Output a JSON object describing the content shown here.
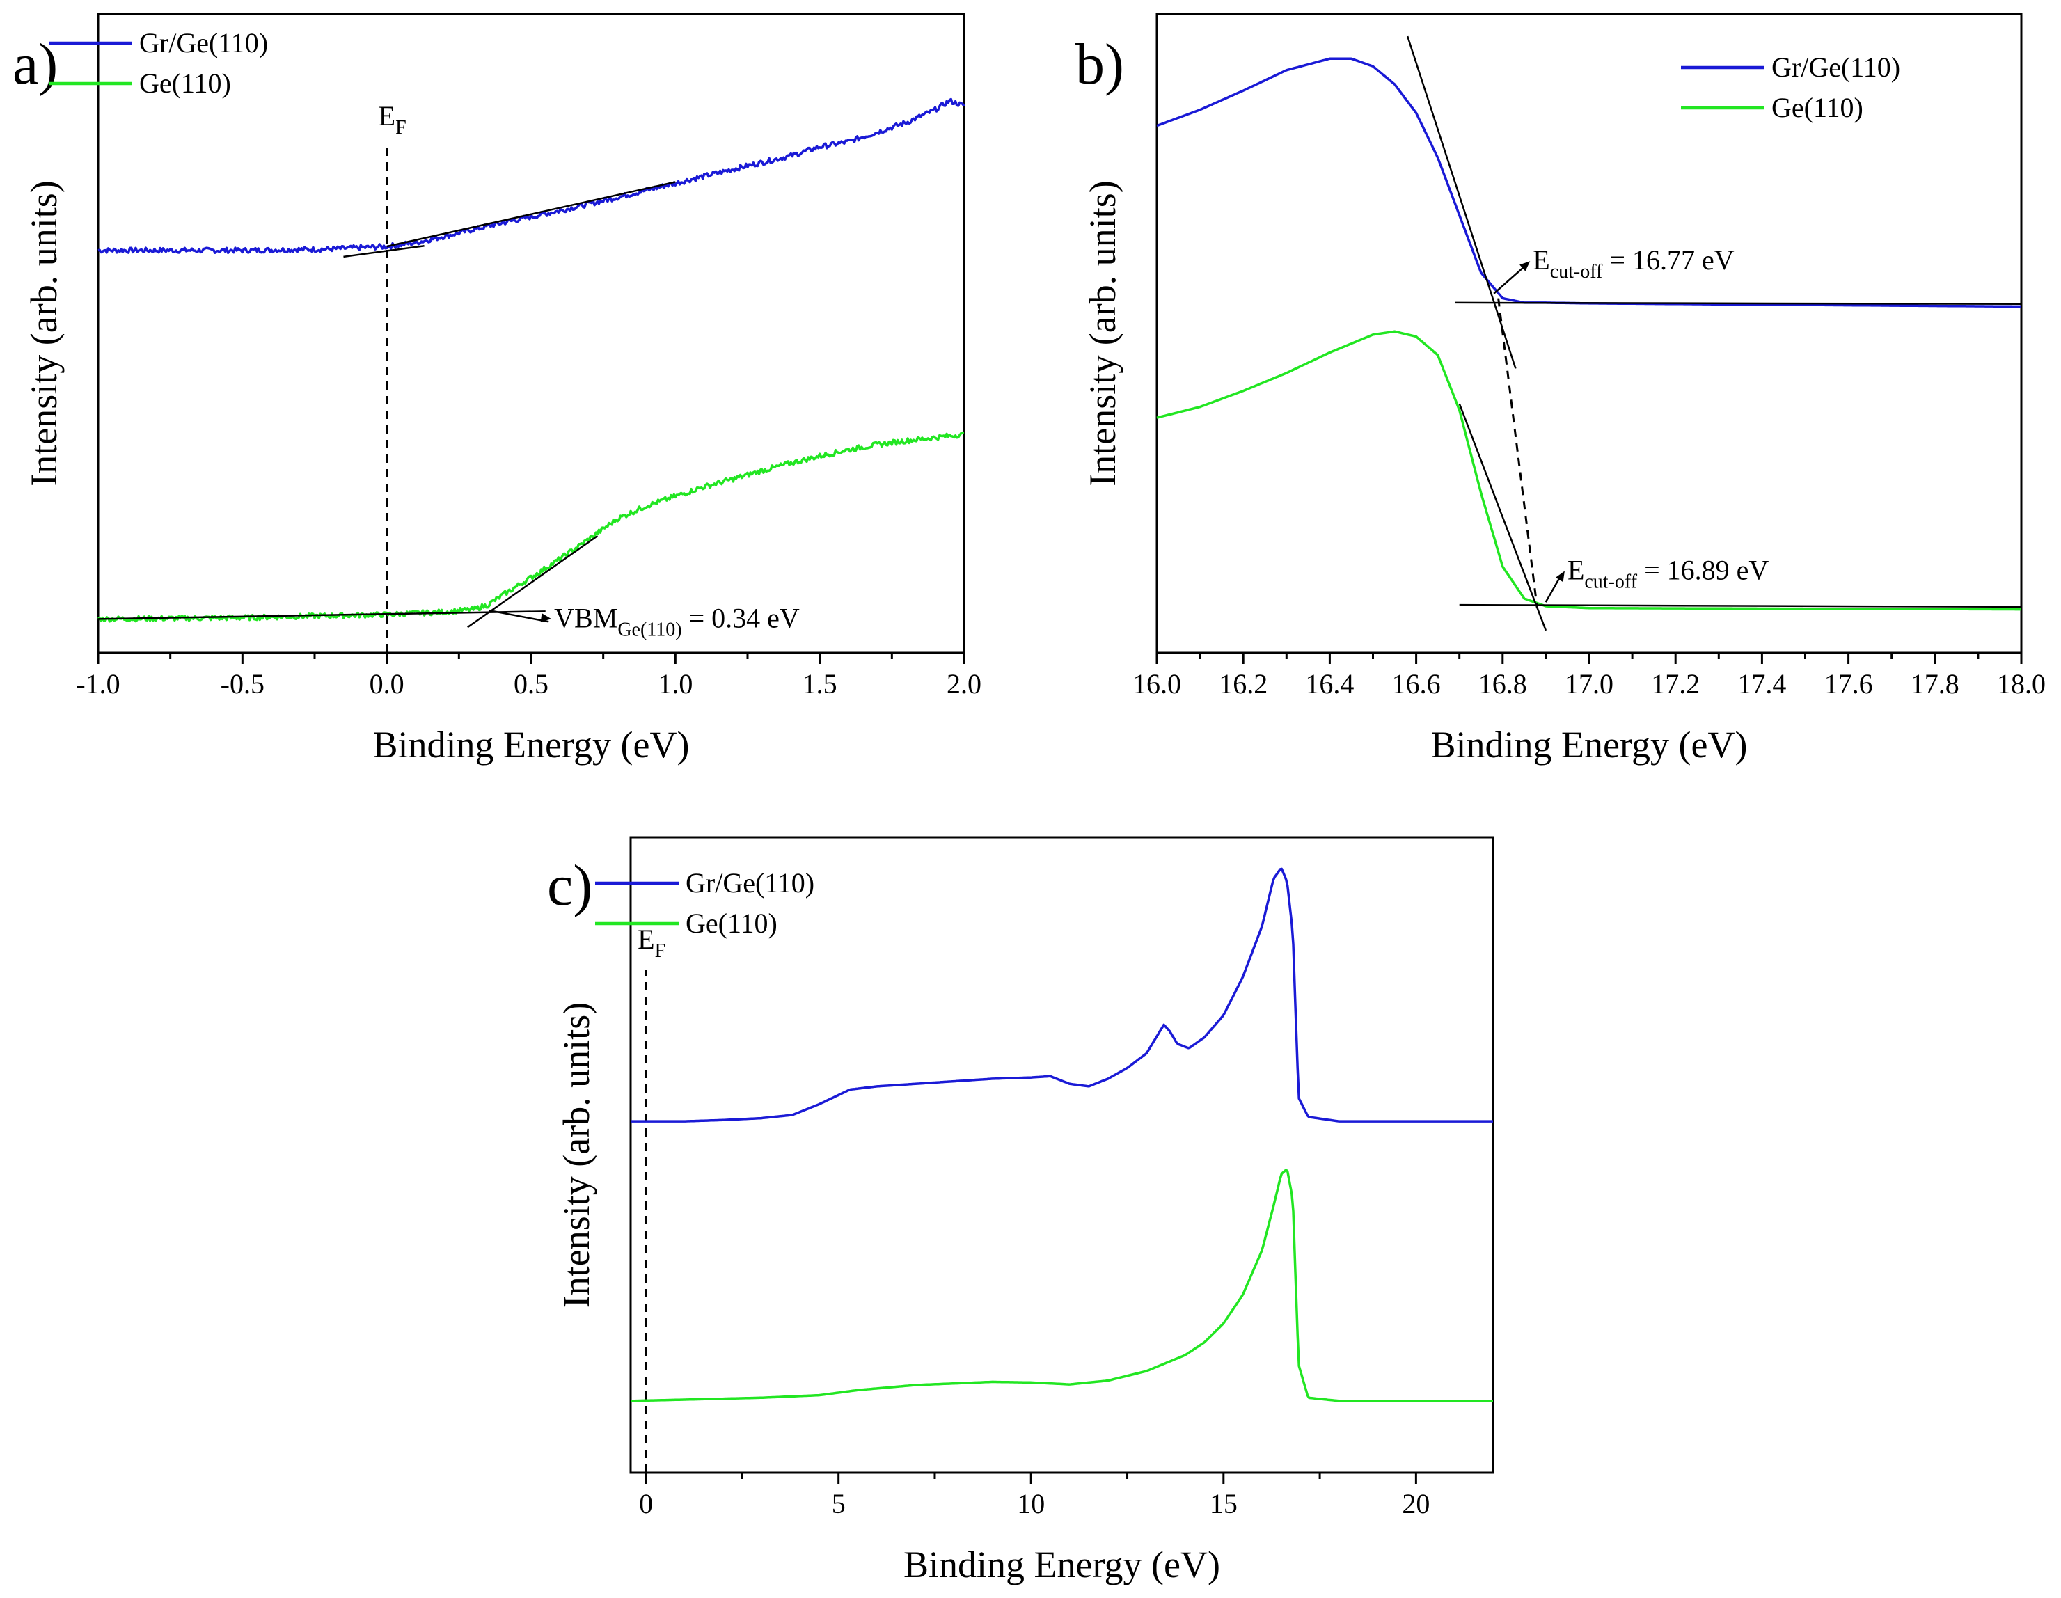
{
  "colors": {
    "blue": "#1a1ad6",
    "green": "#22e622"
  },
  "chart_data": [
    {
      "id": "a",
      "type": "line",
      "panel_label": "a)",
      "xlabel": "Binding Energy (eV)",
      "ylabel": "Intensity (arb. units)",
      "xlim": [
        -1.0,
        2.0
      ],
      "ylim": [
        0,
        1
      ],
      "xticks": [
        -1.0,
        -0.5,
        0.0,
        0.5,
        1.0,
        1.5,
        2.0
      ],
      "xtick_labels": [
        "-1.0",
        "-0.5",
        "0.0",
        "0.5",
        "1.0",
        "1.5",
        "2.0"
      ],
      "legend": [
        "Gr/Ge(110)",
        "Ge(110)"
      ],
      "legend_position": "top-left",
      "series": [
        {
          "name": "Gr/Ge(110)",
          "color": "blue",
          "noise": 0.004,
          "x": [
            -1.0,
            -0.5,
            -0.2,
            0.0,
            0.1,
            0.2,
            0.4,
            0.6,
            0.8,
            1.0,
            1.2,
            1.4,
            1.5,
            1.6,
            1.7,
            1.8,
            1.9,
            1.95,
            2.0
          ],
          "y": [
            0.63,
            0.63,
            0.632,
            0.636,
            0.642,
            0.652,
            0.673,
            0.692,
            0.713,
            0.735,
            0.757,
            0.778,
            0.792,
            0.8,
            0.815,
            0.83,
            0.85,
            0.864,
            0.856
          ]
        },
        {
          "name": "Ge(110)",
          "color": "green",
          "noise": 0.004,
          "x": [
            -1.0,
            -0.5,
            0.0,
            0.2,
            0.3,
            0.35,
            0.4,
            0.5,
            0.6,
            0.7,
            0.8,
            0.9,
            1.0,
            1.1,
            1.2,
            1.3,
            1.4,
            1.5,
            1.6,
            1.7,
            1.8,
            1.9,
            2.0
          ],
          "y": [
            0.053,
            0.055,
            0.06,
            0.064,
            0.068,
            0.075,
            0.09,
            0.118,
            0.147,
            0.178,
            0.21,
            0.23,
            0.245,
            0.26,
            0.272,
            0.285,
            0.297,
            0.308,
            0.318,
            0.326,
            0.332,
            0.337,
            0.342
          ]
        }
      ],
      "fit_lines": [
        {
          "x": [
            -0.15,
            0.13
          ],
          "y": [
            0.62,
            0.637
          ]
        },
        {
          "x": [
            0.0,
            1.0
          ],
          "y": [
            0.636,
            0.737
          ]
        },
        {
          "x": [
            -1.0,
            0.55
          ],
          "y": [
            0.053,
            0.065
          ]
        },
        {
          "x": [
            0.28,
            0.73
          ],
          "y": [
            0.04,
            0.183
          ]
        }
      ],
      "ef_line": {
        "label": "E",
        "sub": "F",
        "x": 0.0
      },
      "annotations": [
        {
          "main": "VBM",
          "sub": "Ge(110)",
          "tail": " = 0.34 eV",
          "point": [
            0.34,
            0.062
          ],
          "text_pos": [
            0.58,
            0.04
          ]
        }
      ]
    },
    {
      "id": "b",
      "type": "line",
      "panel_label": "b)",
      "xlabel": "Binding Energy (eV)",
      "ylabel": "Intensity (arb. units)",
      "xlim": [
        16.0,
        18.0
      ],
      "ylim": [
        0,
        1
      ],
      "xticks": [
        16.0,
        16.2,
        16.4,
        16.6,
        16.8,
        17.0,
        17.2,
        17.4,
        17.6,
        17.8,
        18.0
      ],
      "xtick_labels": [
        "16.0",
        "16.2",
        "16.4",
        "16.6",
        "16.8",
        "17.0",
        "17.2",
        "17.4",
        "17.6",
        "17.8",
        "18.0"
      ],
      "legend": [
        "Gr/Ge(110)",
        "Ge(110)"
      ],
      "legend_position": "top-right",
      "series": [
        {
          "name": "Gr/Ge(110)",
          "color": "blue",
          "noise": 0,
          "x": [
            16.0,
            16.1,
            16.2,
            16.3,
            16.4,
            16.45,
            16.5,
            16.55,
            16.6,
            16.65,
            16.7,
            16.75,
            16.8,
            16.85,
            16.9,
            17.0,
            18.0
          ],
          "y": [
            0.825,
            0.85,
            0.88,
            0.912,
            0.93,
            0.93,
            0.918,
            0.89,
            0.845,
            0.775,
            0.685,
            0.595,
            0.555,
            0.548,
            0.548,
            0.547,
            0.542
          ]
        },
        {
          "name": "Ge(110)",
          "color": "green",
          "noise": 0,
          "x": [
            16.0,
            16.1,
            16.2,
            16.3,
            16.4,
            16.5,
            16.55,
            16.6,
            16.65,
            16.7,
            16.75,
            16.8,
            16.85,
            16.9,
            17.0,
            18.0
          ],
          "y": [
            0.368,
            0.385,
            0.41,
            0.438,
            0.47,
            0.498,
            0.503,
            0.495,
            0.466,
            0.38,
            0.25,
            0.135,
            0.085,
            0.073,
            0.07,
            0.068
          ]
        }
      ],
      "fit_lines": [
        {
          "x": [
            16.58,
            16.83
          ],
          "y": [
            0.965,
            0.445
          ]
        },
        {
          "x": [
            16.69,
            18.0
          ],
          "y": [
            0.548,
            0.546
          ]
        },
        {
          "x": [
            16.7,
            16.9
          ],
          "y": [
            0.39,
            0.035
          ]
        },
        {
          "x": [
            16.7,
            18.0
          ],
          "y": [
            0.075,
            0.072
          ]
        }
      ],
      "dashed_lines": [
        {
          "x": [
            16.79,
            16.88
          ],
          "y": [
            0.555,
            0.07
          ]
        }
      ],
      "annotations": [
        {
          "main": "E",
          "sub": "cut-off",
          "tail": " = 16.77 eV",
          "point": [
            16.77,
            0.558
          ],
          "text_pos": [
            16.87,
            0.6
          ]
        },
        {
          "main": "E",
          "sub": "cut-off",
          "tail": " = 16.89 eV",
          "point": [
            16.89,
            0.075
          ],
          "text_pos": [
            16.95,
            0.115
          ]
        }
      ]
    },
    {
      "id": "c",
      "type": "line",
      "panel_label": "c)",
      "xlabel": "Binding Energy (eV)",
      "ylabel": "Intensity (arb. units)",
      "xlim": [
        -0.4,
        22.0
      ],
      "ylim": [
        0,
        1
      ],
      "xticks": [
        0,
        5,
        10,
        15,
        20
      ],
      "xtick_labels": [
        "0",
        "5",
        "10",
        "15",
        "20"
      ],
      "legend": [
        "Gr/Ge(110)",
        "Ge(110)"
      ],
      "legend_position": "top-left",
      "series": [
        {
          "name": "Gr/Ge(110)",
          "color": "blue",
          "noise": 0,
          "x": [
            -0.4,
            1,
            2,
            3,
            3.8,
            4.5,
            5.3,
            6,
            7,
            8,
            9,
            10,
            10.5,
            11,
            11.5,
            12,
            12.5,
            13,
            13.3,
            13.45,
            13.6,
            13.8,
            14.1,
            14.5,
            15,
            15.5,
            16,
            16.3,
            16.5,
            16.65,
            16.8,
            16.95,
            17.2,
            18,
            19,
            20,
            21,
            22
          ],
          "y": [
            0.553,
            0.553,
            0.555,
            0.558,
            0.563,
            0.58,
            0.603,
            0.608,
            0.612,
            0.616,
            0.62,
            0.622,
            0.624,
            0.612,
            0.608,
            0.62,
            0.637,
            0.66,
            0.69,
            0.705,
            0.695,
            0.675,
            0.668,
            0.685,
            0.72,
            0.78,
            0.86,
            0.935,
            0.952,
            0.93,
            0.85,
            0.59,
            0.56,
            0.553,
            0.553,
            0.553,
            0.553,
            0.553
          ]
        },
        {
          "name": "Ge(110)",
          "color": "green",
          "noise": 0,
          "x": [
            -0.4,
            1,
            3,
            4.5,
            5.5,
            7,
            9,
            10,
            11,
            12,
            13,
            14,
            14.5,
            15,
            15.5,
            16,
            16.3,
            16.5,
            16.65,
            16.8,
            16.95,
            17.2,
            18,
            20,
            22
          ],
          "y": [
            0.113,
            0.115,
            0.118,
            0.122,
            0.13,
            0.138,
            0.143,
            0.142,
            0.139,
            0.145,
            0.16,
            0.185,
            0.205,
            0.235,
            0.28,
            0.35,
            0.42,
            0.47,
            0.478,
            0.43,
            0.17,
            0.118,
            0.113,
            0.113,
            0.113
          ]
        }
      ],
      "ef_line": {
        "label": "E",
        "sub": "F",
        "x": 0.0
      }
    }
  ]
}
